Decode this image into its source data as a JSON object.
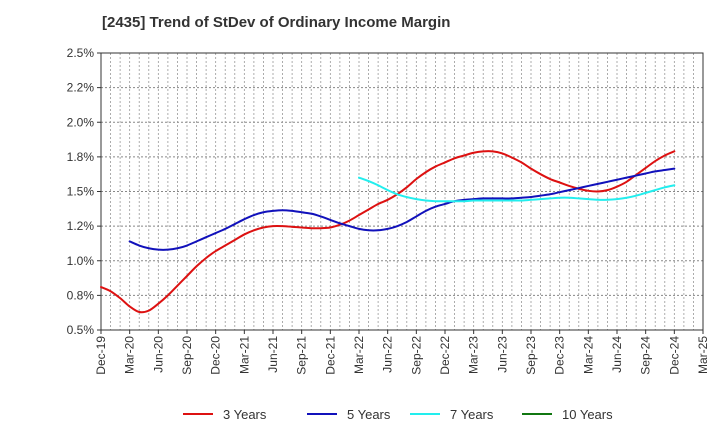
{
  "title": "[2435]  Trend of StDev of Ordinary Income Margin",
  "chart_data": {
    "type": "line",
    "title": "[2435]  Trend of StDev of Ordinary Income Margin",
    "xlabel": "",
    "ylabel": "",
    "x_tick_labels": [
      "Dec-19",
      "Mar-20",
      "Jun-20",
      "Sep-20",
      "Dec-20",
      "Mar-21",
      "Jun-21",
      "Sep-21",
      "Dec-21",
      "Mar-22",
      "Jun-22",
      "Sep-22",
      "Dec-22",
      "Mar-23",
      "Jun-23",
      "Sep-23",
      "Dec-23",
      "Mar-24",
      "Jun-24",
      "Sep-24",
      "Dec-24",
      "Mar-25"
    ],
    "y_tick_labels": [
      "0.5%",
      "0.8%",
      "1.0%",
      "1.2%",
      "1.5%",
      "1.8%",
      "2.0%",
      "2.2%",
      "2.5%"
    ],
    "ylim": [
      0.5,
      2.5
    ],
    "y_unit": "%",
    "grid": true,
    "legend_position": "bottom",
    "series": [
      {
        "name": "3 Years",
        "color": "#dd1111",
        "x": [
          "Dec-19",
          "Jan-20",
          "Feb-20",
          "Mar-20",
          "Apr-20",
          "May-20",
          "Jun-20",
          "Jul-20",
          "Aug-20",
          "Sep-20",
          "Oct-20",
          "Nov-20",
          "Dec-20",
          "Jan-21",
          "Feb-21",
          "Mar-21",
          "Apr-21",
          "May-21",
          "Jun-21",
          "Jul-21",
          "Aug-21",
          "Sep-21",
          "Oct-21",
          "Nov-21",
          "Dec-21",
          "Jan-22",
          "Feb-22",
          "Mar-22",
          "Apr-22",
          "May-22",
          "Jun-22",
          "Jul-22",
          "Aug-22",
          "Sep-22",
          "Oct-22",
          "Nov-22",
          "Dec-22",
          "Jan-23",
          "Feb-23",
          "Mar-23",
          "Apr-23",
          "May-23",
          "Jun-23",
          "Jul-23",
          "Aug-23",
          "Sep-23",
          "Oct-23",
          "Nov-23",
          "Dec-23",
          "Jan-24",
          "Feb-24",
          "Mar-24",
          "Apr-24",
          "May-24",
          "Jun-24",
          "Jul-24",
          "Aug-24",
          "Sep-24",
          "Oct-24",
          "Nov-24",
          "Dec-24"
        ],
        "values": [
          0.81,
          0.78,
          0.73,
          0.67,
          0.63,
          0.64,
          0.69,
          0.75,
          0.82,
          0.89,
          0.96,
          1.02,
          1.07,
          1.11,
          1.15,
          1.19,
          1.22,
          1.24,
          1.25,
          1.25,
          1.245,
          1.24,
          1.235,
          1.235,
          1.24,
          1.26,
          1.29,
          1.33,
          1.37,
          1.41,
          1.44,
          1.48,
          1.53,
          1.59,
          1.64,
          1.68,
          1.71,
          1.74,
          1.76,
          1.78,
          1.79,
          1.79,
          1.775,
          1.745,
          1.71,
          1.665,
          1.625,
          1.59,
          1.565,
          1.54,
          1.52,
          1.505,
          1.5,
          1.51,
          1.535,
          1.57,
          1.62,
          1.67,
          1.72,
          1.76,
          1.79
        ]
      },
      {
        "name": "5 Years",
        "color": "#1111bb",
        "x": [
          "Mar-20",
          "Apr-20",
          "May-20",
          "Jun-20",
          "Jul-20",
          "Aug-20",
          "Sep-20",
          "Oct-20",
          "Nov-20",
          "Dec-20",
          "Jan-21",
          "Feb-21",
          "Mar-21",
          "Apr-21",
          "May-21",
          "Jun-21",
          "Jul-21",
          "Aug-21",
          "Sep-21",
          "Oct-21",
          "Nov-21",
          "Dec-21",
          "Jan-22",
          "Feb-22",
          "Mar-22",
          "Apr-22",
          "May-22",
          "Jun-22",
          "Jul-22",
          "Aug-22",
          "Sep-22",
          "Oct-22",
          "Nov-22",
          "Dec-22",
          "Jan-23",
          "Feb-23",
          "Mar-23",
          "Apr-23",
          "May-23",
          "Jun-23",
          "Jul-23",
          "Aug-23",
          "Sep-23",
          "Oct-23",
          "Nov-23",
          "Dec-23",
          "Jan-24",
          "Feb-24",
          "Mar-24",
          "Apr-24",
          "May-24",
          "Jun-24",
          "Jul-24",
          "Aug-24",
          "Sep-24",
          "Oct-24",
          "Nov-24",
          "Dec-24"
        ],
        "values": [
          1.14,
          1.11,
          1.09,
          1.08,
          1.08,
          1.09,
          1.11,
          1.14,
          1.17,
          1.2,
          1.23,
          1.265,
          1.3,
          1.33,
          1.35,
          1.36,
          1.365,
          1.36,
          1.35,
          1.34,
          1.32,
          1.295,
          1.27,
          1.25,
          1.23,
          1.22,
          1.22,
          1.23,
          1.25,
          1.28,
          1.32,
          1.36,
          1.39,
          1.41,
          1.43,
          1.44,
          1.445,
          1.45,
          1.45,
          1.45,
          1.45,
          1.455,
          1.46,
          1.47,
          1.48,
          1.495,
          1.51,
          1.525,
          1.54,
          1.555,
          1.57,
          1.585,
          1.6,
          1.615,
          1.63,
          1.645,
          1.655,
          1.665
        ]
      },
      {
        "name": "7 Years",
        "color": "#22eeee",
        "x": [
          "Mar-22",
          "Apr-22",
          "May-22",
          "Jun-22",
          "Jul-22",
          "Aug-22",
          "Sep-22",
          "Oct-22",
          "Nov-22",
          "Dec-22",
          "Jan-23",
          "Feb-23",
          "Mar-23",
          "Apr-23",
          "May-23",
          "Jun-23",
          "Jul-23",
          "Aug-23",
          "Sep-23",
          "Oct-23",
          "Nov-23",
          "Dec-23",
          "Jan-24",
          "Feb-24",
          "Mar-24",
          "Apr-24",
          "May-24",
          "Jun-24",
          "Jul-24",
          "Aug-24",
          "Sep-24",
          "Oct-24",
          "Nov-24",
          "Dec-24"
        ],
        "values": [
          1.6,
          1.575,
          1.545,
          1.51,
          1.48,
          1.46,
          1.445,
          1.435,
          1.43,
          1.43,
          1.43,
          1.43,
          1.435,
          1.435,
          1.435,
          1.435,
          1.435,
          1.435,
          1.44,
          1.445,
          1.45,
          1.455,
          1.455,
          1.45,
          1.445,
          1.44,
          1.44,
          1.445,
          1.455,
          1.47,
          1.49,
          1.51,
          1.53,
          1.545
        ]
      },
      {
        "name": "10 Years",
        "color": "#117711",
        "x": [],
        "values": []
      }
    ]
  }
}
